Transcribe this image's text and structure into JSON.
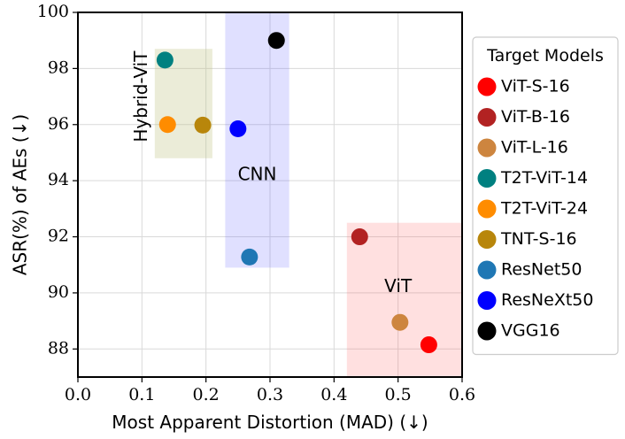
{
  "chart_data": {
    "type": "scatter",
    "title": "",
    "xlabel": "Most Apparent Distortion (MAD) (↓)",
    "ylabel": "ASR(%) of AEs (↓)",
    "xlim": [
      0.0,
      0.6
    ],
    "ylim": [
      87.0,
      100.0
    ],
    "xticks": [
      0.0,
      0.1,
      0.2,
      0.3,
      0.4,
      0.5,
      0.6
    ],
    "xtick_labels": [
      "0.0",
      "0.1",
      "0.2",
      "0.3",
      "0.4",
      "0.5",
      "0.6"
    ],
    "yticks": [
      88,
      90,
      92,
      94,
      96,
      98,
      100
    ],
    "ytick_labels": [
      "88",
      "90",
      "92",
      "94",
      "96",
      "98",
      "100"
    ],
    "grid": true,
    "legend_title": "Target Models",
    "legend_position": "right",
    "series": [
      {
        "name": "ViT-S-16",
        "color": "#ff0000",
        "x": 0.548,
        "y": 88.15
      },
      {
        "name": "ViT-B-16",
        "color": "#b22222",
        "x": 0.44,
        "y": 92.0
      },
      {
        "name": "ViT-L-16",
        "color": "#cd853f",
        "x": 0.503,
        "y": 88.95
      },
      {
        "name": "T2T-ViT-14",
        "color": "#008080",
        "x": 0.136,
        "y": 98.3
      },
      {
        "name": "T2T-ViT-24",
        "color": "#ff8c00",
        "x": 0.14,
        "y": 96.0
      },
      {
        "name": "TNT-S-16",
        "color": "#b8860b",
        "x": 0.195,
        "y": 95.98
      },
      {
        "name": "ResNet50",
        "color": "#1f77b4",
        "x": 0.268,
        "y": 91.28
      },
      {
        "name": "ResNeXt50",
        "color": "#0000ff",
        "x": 0.25,
        "y": 95.85
      },
      {
        "name": "VGG16",
        "color": "#000000",
        "x": 0.31,
        "y": 99.0
      }
    ],
    "regions": [
      {
        "label": "Hybrid-ViT",
        "color": "#bdbf7d",
        "opacity": 0.3,
        "x0": 0.12,
        "x1": 0.21,
        "y0": 94.8,
        "y1": 98.7,
        "label_x": 0.1,
        "label_y": 97.0,
        "label_rotation": -90
      },
      {
        "label": "CNN",
        "color": "#6666ff",
        "opacity": 0.2,
        "x0": 0.23,
        "x1": 0.33,
        "y0": 90.9,
        "y1": 100.0,
        "label_x": 0.28,
        "label_y": 94.2,
        "label_rotation": 0
      },
      {
        "label": "ViT",
        "color": "#ff6666",
        "opacity": 0.2,
        "x0": 0.42,
        "x1": 0.6,
        "y0": 87.0,
        "y1": 92.5,
        "label_x": 0.5,
        "label_y": 90.2,
        "label_rotation": 0
      }
    ]
  }
}
